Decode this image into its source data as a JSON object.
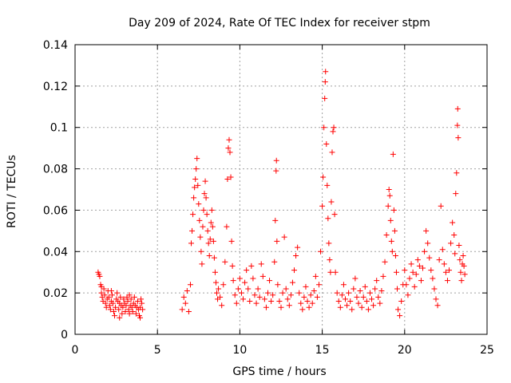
{
  "chart_data": {
    "type": "scatter",
    "title": "Day 209 of 2024, Rate Of TEC Index for receiver stpm",
    "xlabel": "GPS time / hours",
    "ylabel": "ROTI / TECUs",
    "xlim": [
      0,
      25
    ],
    "ylim": [
      0,
      0.14
    ],
    "xticks": [
      0,
      5,
      10,
      15,
      20,
      25
    ],
    "xtick_labels": [
      "0",
      "5",
      "10",
      "15",
      "20",
      "25"
    ],
    "yticks": [
      0,
      0.02,
      0.04,
      0.06,
      0.08,
      0.1,
      0.12,
      0.14
    ],
    "ytick_labels": [
      "0",
      "0.02",
      "0.04",
      "0.06",
      "0.08",
      "0.1",
      "0.12",
      "0.14"
    ],
    "grid": true,
    "marker": "+",
    "color": "#ff0000",
    "series": [
      {
        "name": "ROTI",
        "points": [
          [
            1.4,
            0.03
          ],
          [
            1.45,
            0.029
          ],
          [
            1.5,
            0.028
          ],
          [
            1.55,
            0.024
          ],
          [
            1.6,
            0.02
          ],
          [
            1.65,
            0.018
          ],
          [
            1.7,
            0.016
          ],
          [
            1.75,
            0.022
          ],
          [
            1.8,
            0.019
          ],
          [
            1.85,
            0.015
          ],
          [
            1.9,
            0.013
          ],
          [
            1.95,
            0.017
          ],
          [
            2.0,
            0.021
          ],
          [
            2.05,
            0.018
          ],
          [
            2.1,
            0.014
          ],
          [
            2.15,
            0.012
          ],
          [
            2.2,
            0.016
          ],
          [
            2.25,
            0.019
          ],
          [
            2.3,
            0.015
          ],
          [
            2.35,
            0.011
          ],
          [
            2.4,
            0.009
          ],
          [
            2.45,
            0.013
          ],
          [
            2.5,
            0.017
          ],
          [
            2.55,
            0.02
          ],
          [
            2.6,
            0.016
          ],
          [
            2.65,
            0.012
          ],
          [
            2.7,
            0.015
          ],
          [
            2.75,
            0.018
          ],
          [
            2.8,
            0.014
          ],
          [
            2.85,
            0.01
          ],
          [
            2.9,
            0.013
          ],
          [
            2.95,
            0.017
          ],
          [
            3.0,
            0.015
          ],
          [
            3.05,
            0.011
          ],
          [
            3.1,
            0.014
          ],
          [
            3.15,
            0.018
          ],
          [
            3.2,
            0.016
          ],
          [
            3.25,
            0.012
          ],
          [
            3.3,
            0.01
          ],
          [
            3.35,
            0.014
          ],
          [
            3.4,
            0.017
          ],
          [
            3.45,
            0.013
          ],
          [
            3.5,
            0.011
          ],
          [
            3.55,
            0.015
          ],
          [
            3.6,
            0.018
          ],
          [
            3.65,
            0.014
          ],
          [
            3.7,
            0.01
          ],
          [
            3.75,
            0.013
          ],
          [
            3.8,
            0.016
          ],
          [
            3.85,
            0.012
          ],
          [
            3.9,
            0.009
          ],
          [
            3.95,
            0.013
          ],
          [
            4.0,
            0.017
          ],
          [
            4.05,
            0.015
          ],
          [
            4.1,
            0.012
          ],
          [
            1.6,
            0.023
          ],
          [
            2.2,
            0.021
          ],
          [
            2.7,
            0.008
          ],
          [
            3.3,
            0.019
          ],
          [
            3.95,
            0.008
          ],
          [
            6.5,
            0.012
          ],
          [
            6.6,
            0.018
          ],
          [
            6.7,
            0.015
          ],
          [
            6.8,
            0.021
          ],
          [
            6.9,
            0.011
          ],
          [
            7.0,
            0.024
          ],
          [
            7.05,
            0.044
          ],
          [
            7.1,
            0.05
          ],
          [
            7.15,
            0.058
          ],
          [
            7.2,
            0.066
          ],
          [
            7.25,
            0.071
          ],
          [
            7.3,
            0.075
          ],
          [
            7.35,
            0.08
          ],
          [
            7.4,
            0.085
          ],
          [
            7.45,
            0.072
          ],
          [
            7.5,
            0.063
          ],
          [
            7.55,
            0.055
          ],
          [
            7.6,
            0.047
          ],
          [
            7.65,
            0.04
          ],
          [
            7.7,
            0.034
          ],
          [
            7.75,
            0.052
          ],
          [
            7.8,
            0.06
          ],
          [
            7.85,
            0.068
          ],
          [
            7.9,
            0.074
          ],
          [
            7.95,
            0.066
          ],
          [
            8.0,
            0.058
          ],
          [
            8.05,
            0.05
          ],
          [
            8.1,
            0.044
          ],
          [
            8.15,
            0.038
          ],
          [
            8.2,
            0.046
          ],
          [
            8.25,
            0.054
          ],
          [
            8.3,
            0.06
          ],
          [
            8.35,
            0.052
          ],
          [
            8.4,
            0.045
          ],
          [
            8.45,
            0.037
          ],
          [
            8.5,
            0.03
          ],
          [
            8.55,
            0.025
          ],
          [
            8.6,
            0.02
          ],
          [
            8.65,
            0.017
          ],
          [
            8.7,
            0.022
          ],
          [
            8.8,
            0.018
          ],
          [
            8.9,
            0.014
          ],
          [
            9.0,
            0.024
          ],
          [
            9.1,
            0.035
          ],
          [
            9.2,
            0.052
          ],
          [
            9.25,
            0.075
          ],
          [
            9.3,
            0.09
          ],
          [
            9.35,
            0.094
          ],
          [
            9.4,
            0.088
          ],
          [
            9.45,
            0.076
          ],
          [
            9.5,
            0.045
          ],
          [
            9.55,
            0.033
          ],
          [
            9.6,
            0.026
          ],
          [
            9.7,
            0.019
          ],
          [
            9.8,
            0.015
          ],
          [
            9.9,
            0.022
          ],
          [
            10.0,
            0.027
          ],
          [
            10.1,
            0.02
          ],
          [
            10.2,
            0.017
          ],
          [
            10.3,
            0.025
          ],
          [
            10.4,
            0.031
          ],
          [
            10.5,
            0.022
          ],
          [
            10.6,
            0.016
          ],
          [
            10.7,
            0.033
          ],
          [
            10.8,
            0.027
          ],
          [
            10.9,
            0.019
          ],
          [
            11.0,
            0.015
          ],
          [
            11.1,
            0.022
          ],
          [
            11.2,
            0.018
          ],
          [
            11.3,
            0.034
          ],
          [
            11.4,
            0.028
          ],
          [
            11.5,
            0.017
          ],
          [
            11.6,
            0.013
          ],
          [
            11.7,
            0.02
          ],
          [
            11.8,
            0.026
          ],
          [
            11.9,
            0.016
          ],
          [
            12.0,
            0.019
          ],
          [
            12.1,
            0.035
          ],
          [
            12.15,
            0.055
          ],
          [
            12.2,
            0.079
          ],
          [
            12.22,
            0.084
          ],
          [
            12.25,
            0.045
          ],
          [
            12.3,
            0.024
          ],
          [
            12.4,
            0.016
          ],
          [
            12.5,
            0.013
          ],
          [
            12.6,
            0.02
          ],
          [
            12.7,
            0.047
          ],
          [
            12.8,
            0.022
          ],
          [
            12.9,
            0.017
          ],
          [
            13.0,
            0.014
          ],
          [
            13.1,
            0.019
          ],
          [
            13.2,
            0.025
          ],
          [
            13.3,
            0.031
          ],
          [
            13.4,
            0.038
          ],
          [
            13.5,
            0.042
          ],
          [
            13.6,
            0.02
          ],
          [
            13.7,
            0.015
          ],
          [
            13.8,
            0.012
          ],
          [
            13.9,
            0.018
          ],
          [
            14.0,
            0.023
          ],
          [
            14.1,
            0.016
          ],
          [
            14.2,
            0.013
          ],
          [
            14.3,
            0.019
          ],
          [
            14.4,
            0.015
          ],
          [
            14.5,
            0.021
          ],
          [
            14.6,
            0.028
          ],
          [
            14.7,
            0.018
          ],
          [
            14.8,
            0.024
          ],
          [
            14.9,
            0.04
          ],
          [
            15.0,
            0.062
          ],
          [
            15.05,
            0.076
          ],
          [
            15.1,
            0.1
          ],
          [
            15.15,
            0.114
          ],
          [
            15.18,
            0.122
          ],
          [
            15.2,
            0.127
          ],
          [
            15.25,
            0.092
          ],
          [
            15.3,
            0.072
          ],
          [
            15.35,
            0.056
          ],
          [
            15.4,
            0.044
          ],
          [
            15.45,
            0.036
          ],
          [
            15.5,
            0.03
          ],
          [
            15.55,
            0.064
          ],
          [
            15.6,
            0.088
          ],
          [
            15.65,
            0.098
          ],
          [
            15.7,
            0.1
          ],
          [
            15.75,
            0.058
          ],
          [
            15.8,
            0.03
          ],
          [
            15.9,
            0.02
          ],
          [
            16.0,
            0.016
          ],
          [
            16.1,
            0.013
          ],
          [
            16.2,
            0.019
          ],
          [
            16.3,
            0.024
          ],
          [
            16.4,
            0.017
          ],
          [
            16.5,
            0.014
          ],
          [
            16.6,
            0.02
          ],
          [
            16.7,
            0.016
          ],
          [
            16.8,
            0.012
          ],
          [
            16.9,
            0.022
          ],
          [
            17.0,
            0.027
          ],
          [
            17.1,
            0.018
          ],
          [
            17.2,
            0.015
          ],
          [
            17.3,
            0.021
          ],
          [
            17.4,
            0.013
          ],
          [
            17.5,
            0.018
          ],
          [
            17.6,
            0.023
          ],
          [
            17.7,
            0.016
          ],
          [
            17.8,
            0.012
          ],
          [
            17.9,
            0.02
          ],
          [
            18.0,
            0.017
          ],
          [
            18.1,
            0.014
          ],
          [
            18.2,
            0.022
          ],
          [
            18.3,
            0.026
          ],
          [
            18.4,
            0.018
          ],
          [
            18.5,
            0.015
          ],
          [
            18.6,
            0.021
          ],
          [
            18.7,
            0.028
          ],
          [
            18.8,
            0.035
          ],
          [
            18.9,
            0.048
          ],
          [
            19.0,
            0.062
          ],
          [
            19.05,
            0.07
          ],
          [
            19.1,
            0.067
          ],
          [
            19.15,
            0.055
          ],
          [
            19.2,
            0.045
          ],
          [
            19.25,
            0.04
          ],
          [
            19.3,
            0.087
          ],
          [
            19.35,
            0.06
          ],
          [
            19.4,
            0.05
          ],
          [
            19.45,
            0.038
          ],
          [
            19.5,
            0.03
          ],
          [
            19.55,
            0.022
          ],
          [
            19.6,
            0.012
          ],
          [
            19.7,
            0.009
          ],
          [
            19.8,
            0.016
          ],
          [
            19.9,
            0.024
          ],
          [
            20.0,
            0.031
          ],
          [
            20.1,
            0.024
          ],
          [
            20.2,
            0.019
          ],
          [
            20.3,
            0.027
          ],
          [
            20.4,
            0.034
          ],
          [
            20.5,
            0.03
          ],
          [
            20.6,
            0.023
          ],
          [
            20.7,
            0.029
          ],
          [
            20.8,
            0.036
          ],
          [
            20.9,
            0.033
          ],
          [
            21.0,
            0.026
          ],
          [
            21.1,
            0.032
          ],
          [
            21.2,
            0.04
          ],
          [
            21.3,
            0.05
          ],
          [
            21.4,
            0.044
          ],
          [
            21.5,
            0.037
          ],
          [
            21.6,
            0.031
          ],
          [
            21.7,
            0.027
          ],
          [
            21.8,
            0.022
          ],
          [
            21.9,
            0.017
          ],
          [
            22.0,
            0.014
          ],
          [
            22.1,
            0.036
          ],
          [
            22.2,
            0.062
          ],
          [
            22.3,
            0.041
          ],
          [
            22.4,
            0.034
          ],
          [
            22.5,
            0.03
          ],
          [
            22.6,
            0.026
          ],
          [
            22.7,
            0.031
          ],
          [
            22.8,
            0.044
          ],
          [
            22.9,
            0.054
          ],
          [
            23.0,
            0.048
          ],
          [
            23.05,
            0.039
          ],
          [
            23.1,
            0.068
          ],
          [
            23.15,
            0.078
          ],
          [
            23.2,
            0.101
          ],
          [
            23.22,
            0.109
          ],
          [
            23.25,
            0.095
          ],
          [
            23.3,
            0.043
          ],
          [
            23.35,
            0.036
          ],
          [
            23.4,
            0.03
          ],
          [
            23.45,
            0.026
          ],
          [
            23.5,
            0.034
          ],
          [
            23.55,
            0.038
          ],
          [
            23.6,
            0.033
          ],
          [
            23.65,
            0.029
          ]
        ]
      }
    ]
  }
}
